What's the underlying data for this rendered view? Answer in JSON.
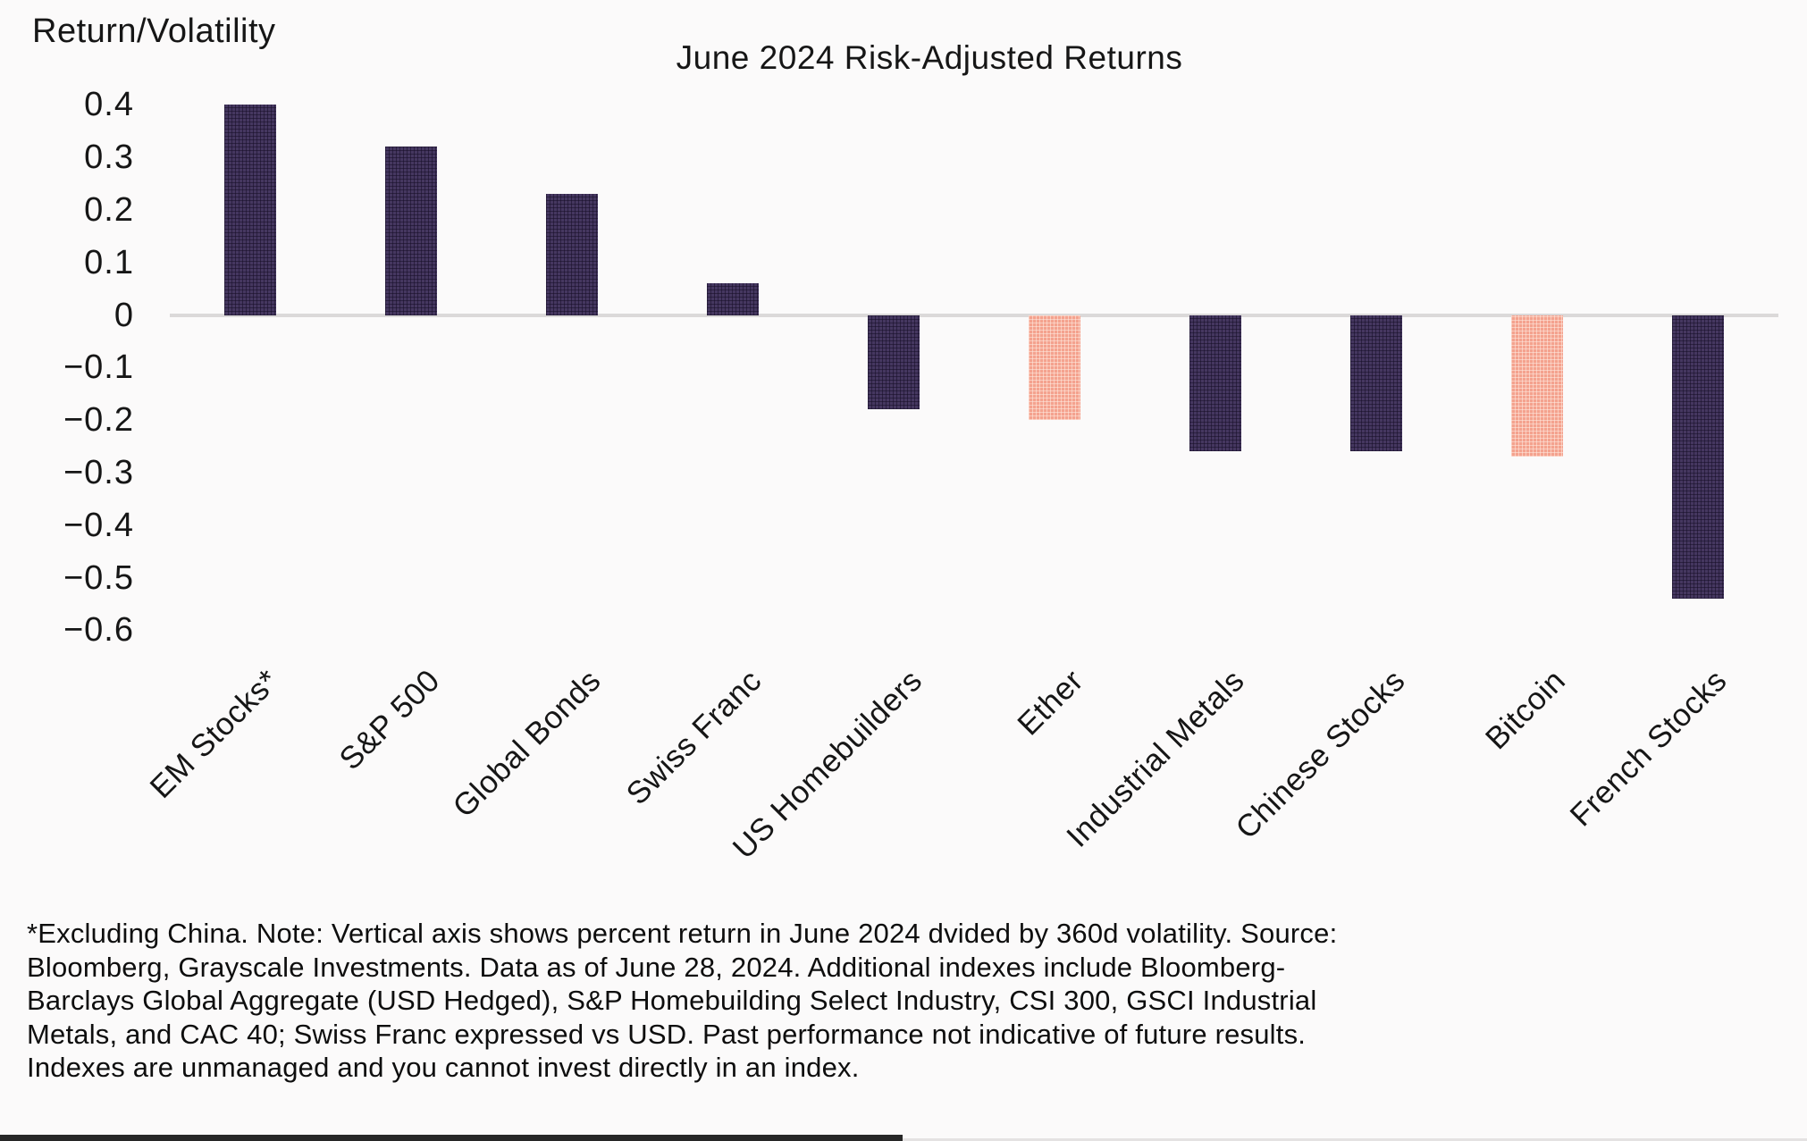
{
  "header": {
    "y_axis_title": "Return/Volatility",
    "chart_title": "June 2024 Risk-Adjusted Returns"
  },
  "chart_data": {
    "type": "bar",
    "title": "June 2024 Risk-Adjusted Returns",
    "ylabel": "Return/Volatility",
    "xlabel": "",
    "categories": [
      "EM Stocks*",
      "S&P 500",
      "Global Bonds",
      "Swiss Franc",
      "US Homebuilders",
      "Ether",
      "Industrial Metals",
      "Chinese Stocks",
      "Bitcoin",
      "French Stocks"
    ],
    "values": [
      0.4,
      0.32,
      0.23,
      0.06,
      -0.18,
      -0.2,
      -0.26,
      -0.26,
      -0.27,
      -0.54
    ],
    "bar_styles": [
      "dark",
      "dark",
      "dark",
      "dark",
      "dark",
      "pink",
      "dark",
      "dark",
      "pink",
      "dark"
    ],
    "palette": {
      "dark": "#3e3055",
      "pink": "#f4a28e"
    },
    "yticks": [
      {
        "label": "0.4",
        "value": 0.4
      },
      {
        "label": "0.3",
        "value": 0.3
      },
      {
        "label": "0.2",
        "value": 0.2
      },
      {
        "label": "0.1",
        "value": 0.1
      },
      {
        "label": "0",
        "value": 0
      },
      {
        "label": "−0.1",
        "value": -0.1
      },
      {
        "label": "−0.2",
        "value": -0.2
      },
      {
        "label": "−0.3",
        "value": -0.3
      },
      {
        "label": "−0.4",
        "value": -0.4
      },
      {
        "label": "−0.5",
        "value": -0.5
      },
      {
        "label": "−0.6",
        "value": -0.6
      }
    ],
    "ylim": [
      -0.625,
      0.455
    ],
    "grid": false,
    "legend_position": "none",
    "zero_line_color": "#dbd9d9"
  },
  "footnote": "*Excluding China. Note: Vertical axis shows percent return in June 2024 dvided by 360d volatility. Source: Bloomberg, Grayscale Investments. Data as of June 28, 2024. Additional indexes include Bloomberg-Barclays Global Aggregate (USD Hedged), S&P Homebuilding Select Industry, CSI 300, GSCI Industrial Metals, and CAC 40; Swiss Franc expressed vs USD. Past performance not indicative of future results. Indexes are unmanaged and you cannot invest directly in an index."
}
